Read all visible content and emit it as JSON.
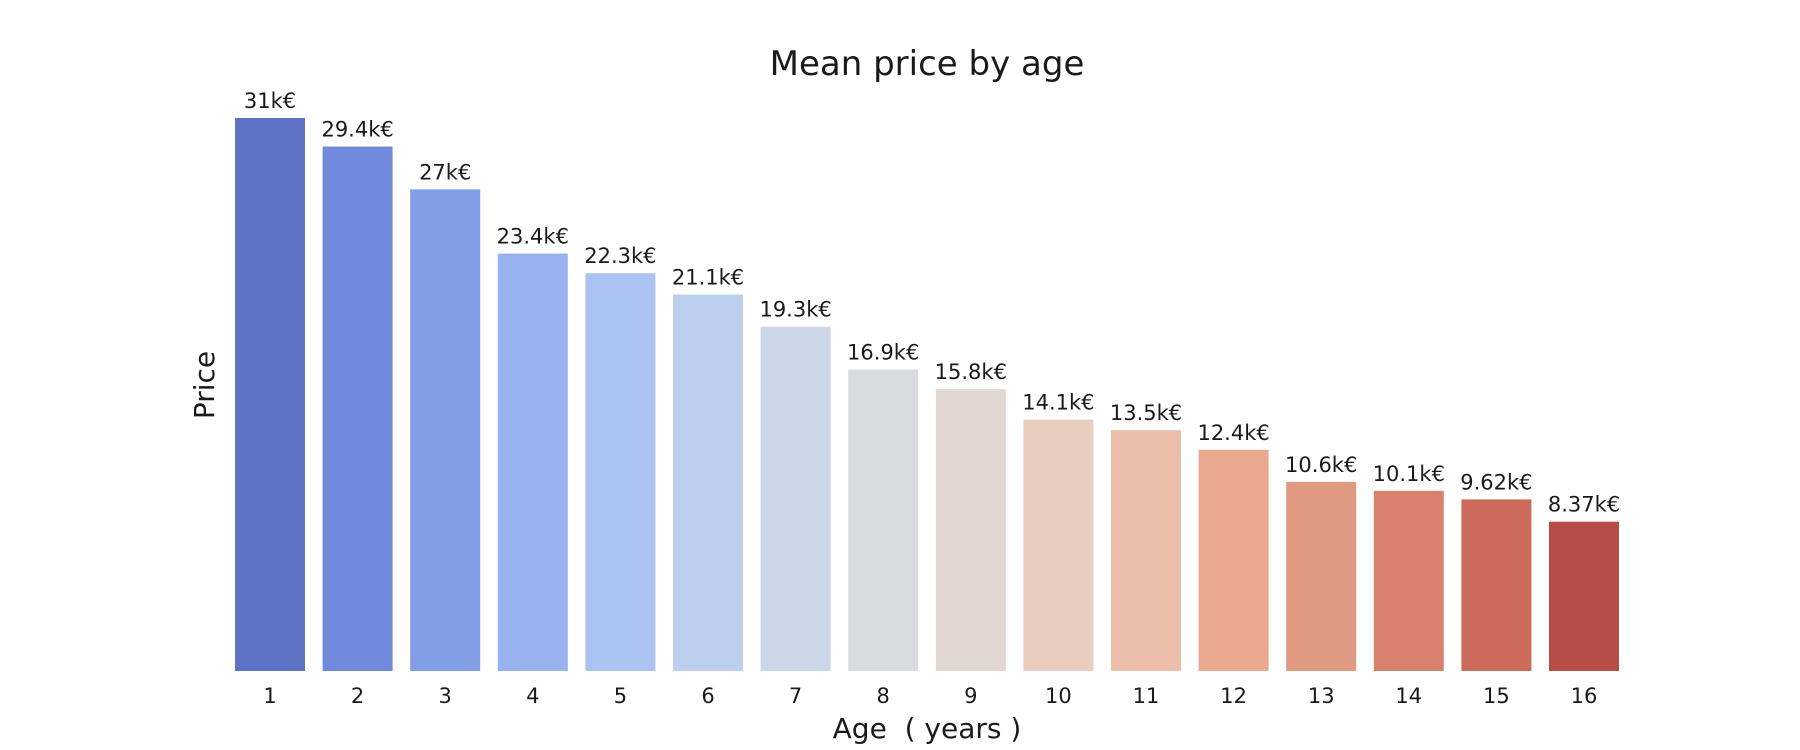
{
  "chart_data": {
    "type": "bar",
    "title": "Mean price by age",
    "xlabel": "Age  ( years )",
    "ylabel": "Price",
    "categories": [
      "1",
      "2",
      "3",
      "4",
      "5",
      "6",
      "7",
      "8",
      "9",
      "10",
      "11",
      "12",
      "13",
      "14",
      "15",
      "16"
    ],
    "values": [
      31000,
      29400,
      27000,
      23400,
      22300,
      21100,
      19300,
      16900,
      15800,
      14100,
      13500,
      12400,
      10600,
      10100,
      9620,
      8370
    ],
    "data_labels": [
      "31k€",
      "29.4k€",
      "27k€",
      "23.4k€",
      "22.3k€",
      "21.1k€",
      "19.3k€",
      "16.9k€",
      "15.8k€",
      "14.1k€",
      "13.5k€",
      "12.4k€",
      "10.6k€",
      "10.1k€",
      "9.62k€",
      "8.37k€"
    ],
    "colors": [
      "#5e72c4",
      "#7089da",
      "#829ee6",
      "#98b2f0",
      "#abc3f3",
      "#bccfef",
      "#ccd7ea",
      "#d9dbe1",
      "#e2d8d1",
      "#e9cdbe",
      "#edbfaa",
      "#eaa98e",
      "#e19a82",
      "#d8826d",
      "#cc6a5b",
      "#b84c48"
    ],
    "ylim": [
      0,
      31000
    ],
    "grid": false,
    "legend": "none"
  }
}
